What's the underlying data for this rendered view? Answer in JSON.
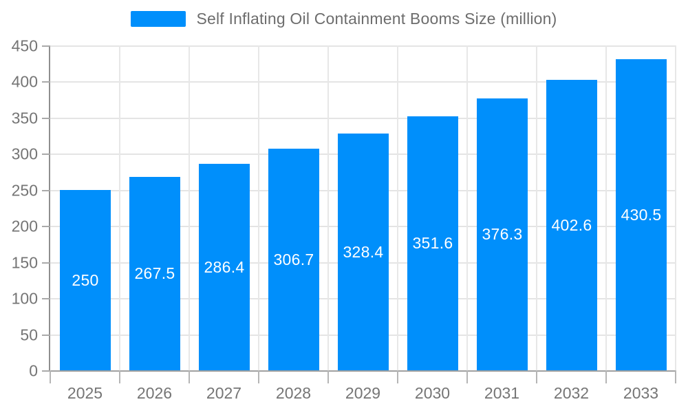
{
  "legend": {
    "label": "Self Inflating Oil Containment Booms Size (million)",
    "swatch_color": "#008FFB"
  },
  "chart_data": {
    "type": "bar",
    "title": "Self Inflating Oil Containment Booms Size (million)",
    "categories": [
      "2025",
      "2026",
      "2027",
      "2028",
      "2029",
      "2030",
      "2031",
      "2032",
      "2033"
    ],
    "series": [
      {
        "name": "Self Inflating Oil Containment Booms Size (million)",
        "values": [
          250,
          267.5,
          286.4,
          306.7,
          328.4,
          351.6,
          376.3,
          402.6,
          430.5
        ]
      }
    ],
    "data_labels": [
      "250",
      "267.5",
      "286.4",
      "306.7",
      "328.4",
      "351.6",
      "376.3",
      "402.6",
      "430.5"
    ],
    "xlabel": "",
    "ylabel": "",
    "ylim": [
      0,
      450
    ],
    "ytick_step": 50,
    "yticks": [
      0,
      50,
      100,
      150,
      200,
      250,
      300,
      350,
      400,
      450
    ],
    "grid": true,
    "legend_position": "top"
  },
  "colors": {
    "bar": "#008FFB",
    "value_label": "#ffffff",
    "grid_h": "#e4e4e4",
    "grid_v": "#e7e7e7",
    "axis_line": "#9a9a9a",
    "tick_label": "#757575",
    "legend_text": "#6d6d6d",
    "background": "#ffffff"
  }
}
